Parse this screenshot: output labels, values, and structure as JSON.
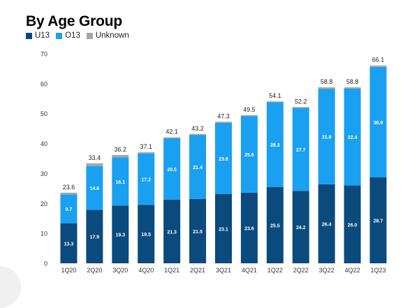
{
  "chart_data": {
    "type": "bar",
    "stacked": true,
    "title": "By Age Group",
    "categories": [
      "1Q20",
      "2Q20",
      "3Q20",
      "4Q20",
      "1Q21",
      "2Q21",
      "3Q21",
      "4Q21",
      "1Q22",
      "2Q22",
      "3Q22",
      "4Q22",
      "1Q23"
    ],
    "series": [
      {
        "name": "U13",
        "color": "#0b4a7d",
        "values": [
          13.3,
          17.9,
          19.3,
          19.5,
          21.3,
          21.5,
          23.1,
          23.6,
          25.5,
          24.2,
          26.4,
          26.0,
          28.7
        ]
      },
      {
        "name": "O13",
        "color": "#1aa0f0",
        "values": [
          9.7,
          14.6,
          16.1,
          17.2,
          20.5,
          21.4,
          23.8,
          25.6,
          28.3,
          27.7,
          31.9,
          32.4,
          36.9
        ]
      },
      {
        "name": "Unknown",
        "color": "#a6a6a6",
        "values": [
          0.6,
          0.9,
          0.8,
          0.4,
          0.3,
          0.3,
          0.4,
          0.3,
          0.3,
          0.3,
          0.5,
          0.4,
          0.5
        ]
      }
    ],
    "totals": [
      "23.6",
      "33.4",
      "36.2",
      "37.1",
      "42.1",
      "43.2",
      "47.3",
      "49.5",
      "54.1",
      "52.2",
      "58.8",
      "58.8",
      "66.1"
    ],
    "u13_labels": [
      "13.3",
      "17.9",
      "19.3",
      "19.5",
      "21.3",
      "21.5",
      "23.1",
      "23.6",
      "25.5",
      "24.2",
      "26.4",
      "26.0",
      "28.7"
    ],
    "o13_labels": [
      "9.7",
      "14.6",
      "16.1",
      "17.2",
      "20.5",
      "21.4",
      "23.8",
      "25.6",
      "28.3",
      "27.7",
      "31.9",
      "32.4",
      "36.9"
    ],
    "ylim": [
      0,
      70
    ],
    "yticks": [
      "0",
      "10",
      "20",
      "30",
      "40",
      "50",
      "60",
      "70"
    ],
    "grid": false,
    "legend_position": "top-left"
  },
  "legend": {
    "u13": "U13",
    "o13": "O13",
    "unknown": "Unknown"
  }
}
